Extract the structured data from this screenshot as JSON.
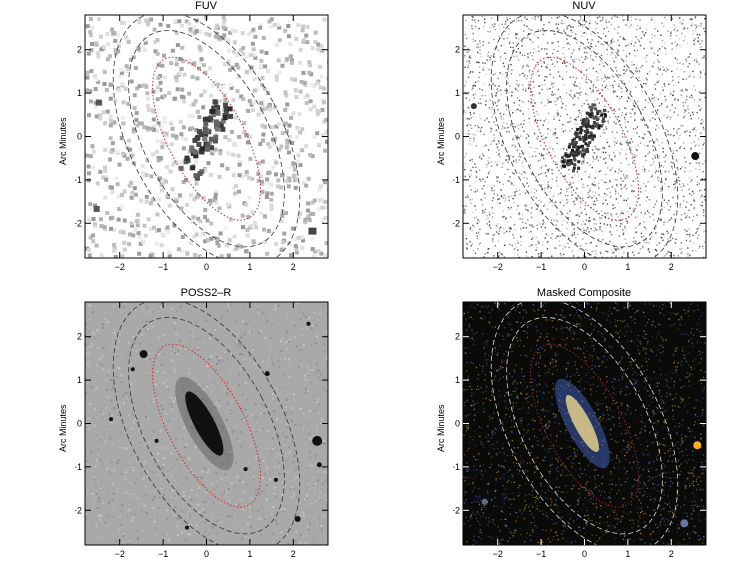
{
  "figure": {
    "panels": [
      {
        "id": "fuv",
        "title": "FUV",
        "ylabel": "Arc Minutes",
        "style": "sparse-light"
      },
      {
        "id": "nuv",
        "title": "NUV",
        "ylabel": "Arc Minutes",
        "style": "noise-light"
      },
      {
        "id": "poss",
        "title": "POSS2–R",
        "ylabel": "Arc Minutes",
        "style": "gray"
      },
      {
        "id": "comp",
        "title": "Masked Composite",
        "ylabel": "Arc Minutes",
        "style": "dark"
      }
    ],
    "axis": {
      "x_ticks": [
        "−2",
        "−1",
        "0",
        "1",
        "2"
      ],
      "y_ticks": [
        "2",
        "1",
        "0",
        "−1",
        "−2"
      ],
      "range": [
        -2.8,
        2.8
      ]
    },
    "colors": {
      "inner_ellipse": "#e02020",
      "outer_ellipse_light": "#333333",
      "outer_ellipse_dark": "#dddddd",
      "composite_bg": "#0a0a08",
      "composite_blue": "#4a6fd8",
      "composite_yellow": "#e0b040"
    }
  }
}
